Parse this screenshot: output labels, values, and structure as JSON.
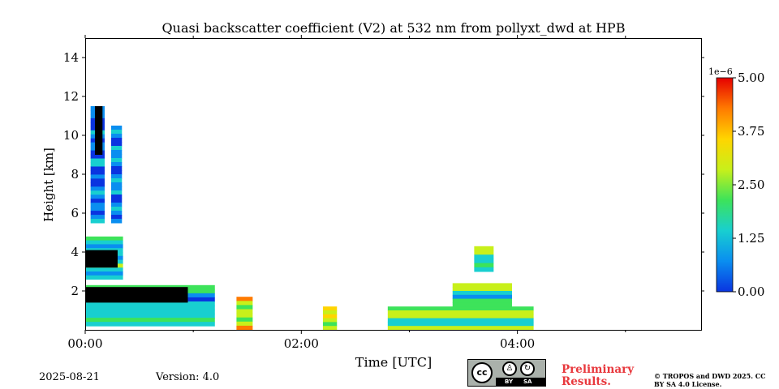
{
  "chart_data": {
    "type": "heatmap",
    "title": "Quasi backscatter coefficient (V2) at 532 nm from pollyxt_dwd at HPB",
    "xlabel": "Time [UTC]",
    "ylabel": "Height [km]",
    "xlim": [
      0,
      5.7
    ],
    "ylim": [
      0,
      15
    ],
    "x_ticks": [
      0,
      2,
      4
    ],
    "x_tick_labels": [
      "00:00",
      "02:00",
      "04:00"
    ],
    "x_minor_ticks": [
      1,
      3,
      5
    ],
    "y_ticks": [
      2,
      4,
      6,
      8,
      10,
      12,
      14
    ],
    "y_tick_labels": [
      "2",
      "4",
      "6",
      "8",
      "10",
      "12",
      "14"
    ],
    "colorbar": {
      "min": 0.0,
      "max": 5.0,
      "ticks": [
        0.0,
        1.25,
        2.5,
        3.75,
        5.0
      ],
      "tick_labels": [
        "0.00",
        "1.25",
        "2.50",
        "3.75",
        "5.00"
      ],
      "offset_label": "1e−6",
      "colors": [
        "#0a34e0",
        "#0a8ef0",
        "#18cfd0",
        "#3de35a",
        "#c8f01a",
        "#ffd500",
        "#ff7a00",
        "#e60000"
      ]
    },
    "regions": [
      {
        "x": [
          0.0,
          1.2
        ],
        "y": [
          0.2,
          2.3
        ],
        "level": 1.4
      },
      {
        "x": [
          1.4,
          1.55
        ],
        "y": [
          0.0,
          1.7
        ],
        "level": 2.8
      },
      {
        "x": [
          2.2,
          2.33
        ],
        "y": [
          0.0,
          1.2
        ],
        "level": 3.0
      },
      {
        "x": [
          2.8,
          4.15
        ],
        "y": [
          0.0,
          1.2
        ],
        "level": 2.2
      },
      {
        "x": [
          3.4,
          3.95
        ],
        "y": [
          1.2,
          2.4
        ],
        "level": 1.8
      },
      {
        "x": [
          0.0,
          0.35
        ],
        "y": [
          2.6,
          4.8
        ],
        "level": 1.5
      },
      {
        "x": [
          0.05,
          0.18
        ],
        "y": [
          5.5,
          11.5
        ],
        "level": 0.7
      },
      {
        "x": [
          0.24,
          0.34
        ],
        "y": [
          5.5,
          10.5
        ],
        "level": 0.8
      },
      {
        "x": [
          3.6,
          3.78
        ],
        "y": [
          3.0,
          4.3
        ],
        "level": 2.0
      }
    ],
    "black_regions": [
      {
        "x": [
          0.0,
          0.95
        ],
        "y": [
          1.4,
          2.2
        ]
      },
      {
        "x": [
          0.0,
          0.3
        ],
        "y": [
          3.2,
          4.1
        ]
      },
      {
        "x": [
          0.09,
          0.16
        ],
        "y": [
          9.0,
          11.5
        ]
      }
    ]
  },
  "footer": {
    "date": "2025-08-21",
    "version": "Version: 4.0",
    "preliminary": "Preliminary Results.",
    "copyright": "© TROPOS and DWD 2025. CC BY SA 4.0 License."
  },
  "license_badge": {
    "cc": "cc",
    "by": "BY",
    "sa": "SA"
  }
}
